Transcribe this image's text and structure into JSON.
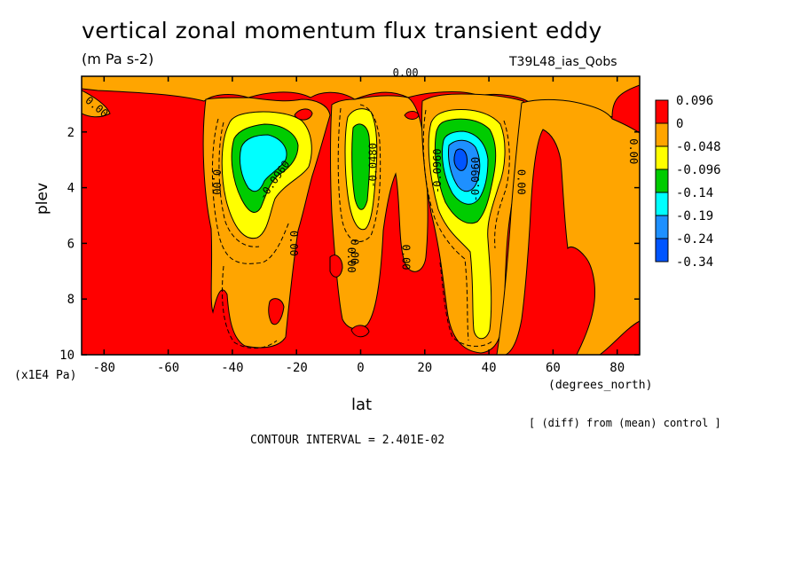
{
  "chart_data": {
    "type": "heatmap",
    "title": "vertical zonal momentum flux transient eddy",
    "units": "(m Pa s-2)",
    "run_id": "T39L48_ias_Qobs",
    "xlabel": "lat",
    "xunit": "(degrees_north)",
    "ylabel": "plev",
    "yunit": "(x1E4 Pa)",
    "xlim": [
      -87,
      87
    ],
    "ylim": [
      0,
      10
    ],
    "y_inverted": true,
    "xticks": [
      -80,
      -60,
      -40,
      -20,
      0,
      20,
      40,
      60,
      80
    ],
    "xtick_labels": [
      "-80",
      "-60",
      "-40",
      "-20",
      "0",
      "20",
      "40",
      "60",
      "80"
    ],
    "yticks": [
      2,
      4,
      6,
      8,
      10
    ],
    "ytick_labels": [
      "2",
      "4",
      "6",
      "8",
      "10"
    ],
    "legend": {
      "placement": "right",
      "labels": [
        "0.096",
        "0",
        "-0.048",
        "-0.096",
        "-0.14",
        "-0.19",
        "-0.24",
        "-0.34"
      ],
      "colors": [
        "#ff0000",
        "#ffa500",
        "#ffff00",
        "#00cc00",
        "#00ffff",
        "#1e90ff",
        "#0055ff"
      ]
    },
    "contour_labels": [
      "0.00",
      "0.00",
      "0.00",
      "0.00",
      "0.00",
      "0.00",
      "0.00",
      "0.00",
      "0.00",
      "-0.0960",
      "-0.0480",
      "-0.0960",
      "-0.0960"
    ],
    "contour_interval": "CONTOUR INTERVAL = 2.401E-02",
    "note": "[ (diff) from (mean) control ]"
  }
}
